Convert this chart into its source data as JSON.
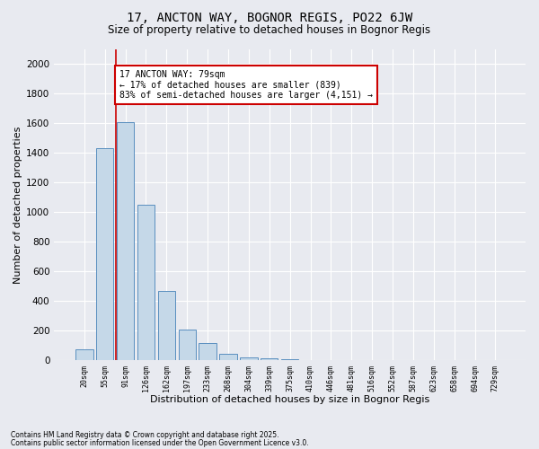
{
  "title1": "17, ANCTON WAY, BOGNOR REGIS, PO22 6JW",
  "title2": "Size of property relative to detached houses in Bognor Regis",
  "xlabel": "Distribution of detached houses by size in Bognor Regis",
  "ylabel": "Number of detached properties",
  "categories": [
    "20sqm",
    "55sqm",
    "91sqm",
    "126sqm",
    "162sqm",
    "197sqm",
    "233sqm",
    "268sqm",
    "304sqm",
    "339sqm",
    "375sqm",
    "410sqm",
    "446sqm",
    "481sqm",
    "516sqm",
    "552sqm",
    "587sqm",
    "623sqm",
    "658sqm",
    "694sqm",
    "729sqm"
  ],
  "values": [
    75,
    1430,
    1610,
    1050,
    470,
    205,
    115,
    40,
    20,
    10,
    5,
    2,
    2,
    1,
    0,
    0,
    0,
    0,
    0,
    0,
    0
  ],
  "bar_color": "#c5d8e8",
  "bar_edge_color": "#5a8fbf",
  "bg_color": "#e8eaf0",
  "grid_color": "#ffffff",
  "annotation_text": "17 ANCTON WAY: 79sqm\n← 17% of detached houses are smaller (839)\n83% of semi-detached houses are larger (4,151) →",
  "annotation_box_color": "#ffffff",
  "annotation_box_edge": "#cc0000",
  "redline_color": "#cc0000",
  "redline_x": 1.55,
  "footer1": "Contains HM Land Registry data © Crown copyright and database right 2025.",
  "footer2": "Contains public sector information licensed under the Open Government Licence v3.0.",
  "ylim": [
    0,
    2100
  ],
  "yticks": [
    0,
    200,
    400,
    600,
    800,
    1000,
    1200,
    1400,
    1600,
    1800,
    2000
  ]
}
